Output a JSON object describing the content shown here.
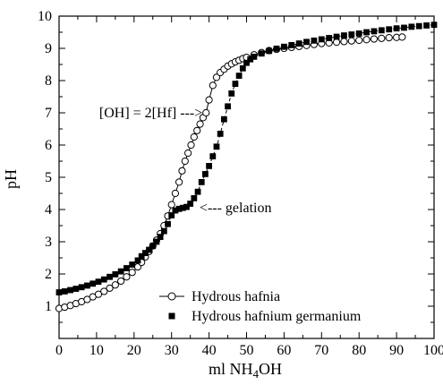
{
  "chart_data": {
    "type": "scatter",
    "xlabel": "ml NH",
    "xlabel_sub": "4",
    "xlabel_suffix": "OH",
    "ylabel": "pH",
    "xlim": [
      0,
      100
    ],
    "ylim": [
      0,
      10
    ],
    "xticks": [
      0,
      10,
      20,
      30,
      40,
      50,
      60,
      70,
      80,
      90,
      100
    ],
    "yticks": [
      1,
      2,
      3,
      4,
      5,
      6,
      7,
      8,
      9,
      10
    ],
    "grid": false,
    "legend_position": "bottom-right",
    "series": [
      {
        "name": "Hydrous hafnia",
        "marker": "open-circle",
        "line": "solid",
        "x": [
          0,
          1.5,
          3,
          4.5,
          6,
          7.5,
          9,
          10.5,
          12,
          13.5,
          15,
          16.5,
          18,
          19.5,
          21,
          22,
          23,
          24,
          25,
          26,
          27,
          28,
          29,
          30,
          31,
          32,
          32.8,
          33.6,
          34.4,
          35.2,
          36,
          36.8,
          37.6,
          38.4,
          39.2,
          40,
          41,
          42,
          43,
          44,
          45,
          46,
          47,
          48,
          49,
          50,
          52,
          54,
          56,
          58,
          60,
          62,
          64,
          66,
          68,
          70,
          72,
          74,
          76,
          78,
          80,
          82,
          84,
          86,
          88,
          90,
          91.5
        ],
        "y": [
          0.93,
          0.97,
          1.02,
          1.08,
          1.14,
          1.21,
          1.29,
          1.37,
          1.46,
          1.56,
          1.66,
          1.78,
          1.91,
          2.05,
          2.22,
          2.36,
          2.53,
          2.7,
          2.87,
          3.05,
          3.25,
          3.5,
          3.8,
          4.15,
          4.5,
          4.85,
          5.2,
          5.5,
          5.75,
          6.0,
          6.25,
          6.45,
          6.65,
          6.85,
          7.0,
          7.4,
          7.85,
          8.1,
          8.25,
          8.35,
          8.45,
          8.52,
          8.58,
          8.63,
          8.68,
          8.72,
          8.8,
          8.87,
          8.93,
          8.97,
          9.0,
          9.03,
          9.06,
          9.09,
          9.12,
          9.15,
          9.17,
          9.19,
          9.21,
          9.23,
          9.25,
          9.27,
          9.29,
          9.31,
          9.33,
          9.34,
          9.35
        ]
      },
      {
        "name": "Hydrous hafnium germanium",
        "marker": "filled-square",
        "line": "dashed",
        "x": [
          0,
          1.5,
          3,
          4.5,
          6,
          7.5,
          9,
          10.5,
          12,
          13.5,
          15,
          16.5,
          18,
          19.5,
          21,
          22,
          23,
          24,
          25,
          26,
          27,
          28,
          29,
          30,
          31,
          32,
          33,
          34,
          35,
          36,
          37,
          38,
          39,
          40,
          41,
          42,
          43,
          44,
          45,
          46,
          47,
          48,
          49,
          50,
          51,
          52,
          54,
          56,
          58,
          60,
          62,
          64,
          66,
          68,
          70,
          72,
          74,
          76,
          78,
          80,
          82,
          84,
          86,
          88,
          90,
          92,
          94,
          96,
          98,
          100
        ],
        "y": [
          1.43,
          1.46,
          1.5,
          1.54,
          1.59,
          1.64,
          1.7,
          1.76,
          1.83,
          1.91,
          1.99,
          2.08,
          2.18,
          2.29,
          2.42,
          2.55,
          2.65,
          2.75,
          2.87,
          3.0,
          3.15,
          3.33,
          3.55,
          3.82,
          3.97,
          4.02,
          4.05,
          4.08,
          4.18,
          4.35,
          4.55,
          4.85,
          5.1,
          5.35,
          5.65,
          5.95,
          6.35,
          6.8,
          7.2,
          7.6,
          7.9,
          8.15,
          8.38,
          8.55,
          8.66,
          8.74,
          8.84,
          8.92,
          8.99,
          9.05,
          9.1,
          9.15,
          9.2,
          9.24,
          9.28,
          9.32,
          9.36,
          9.4,
          9.43,
          9.46,
          9.5,
          9.53,
          9.56,
          9.59,
          9.62,
          9.64,
          9.67,
          9.69,
          9.71,
          9.73
        ]
      }
    ],
    "annotations": [
      {
        "text": "[OH] = 2[Hf] --->",
        "x": 39.2,
        "y": 7.0,
        "anchor": "end"
      },
      {
        "text": "<--- gelation",
        "x": 36.5,
        "y": 4.05,
        "anchor": "start"
      }
    ]
  }
}
